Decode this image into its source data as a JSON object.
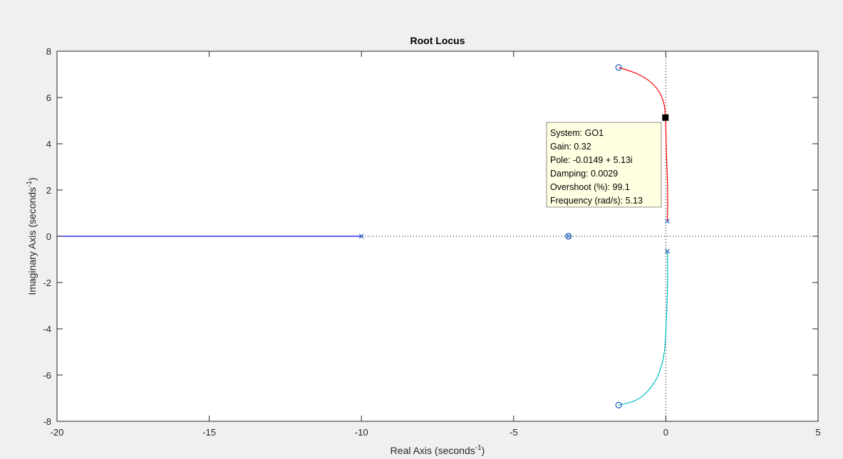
{
  "chart_data": {
    "type": "scatter",
    "title": "Root Locus",
    "xlabel": "Real Axis (seconds",
    "xlabel_sup": "-1",
    "xlabel_end": ")",
    "ylabel": "Imaginary Axis (seconds",
    "ylabel_sup": "-1",
    "ylabel_end": ")",
    "xlim": [
      -20,
      5
    ],
    "ylim": [
      -8,
      8
    ],
    "xticks": [
      -20,
      -15,
      -10,
      -5,
      0,
      5
    ],
    "yticks": [
      -8,
      -6,
      -4,
      -2,
      0,
      2,
      4,
      6,
      8
    ],
    "grid": false,
    "colors": {
      "branch_real": "#0000ff",
      "branch_upper": "#ff0000",
      "branch_lower": "#00bfbf",
      "markers": "#1f5fbf",
      "reference_lines": "#000000",
      "datatip_bg": "#ffffe1"
    },
    "series": [
      {
        "values": [
          [
            -20,
            0
          ],
          [
            -10,
            0
          ]
        ]
      },
      {
        "values": [
          [
            0.05,
            0.65
          ],
          [
            0.06,
            1.5
          ],
          [
            0.05,
            2.5
          ],
          [
            0.02,
            3.5
          ],
          [
            -0.0149,
            5.13
          ],
          [
            -0.1,
            5.9
          ],
          [
            -0.4,
            6.55
          ],
          [
            -0.9,
            7.0
          ],
          [
            -1.55,
            7.3
          ]
        ]
      },
      {
        "values": [
          [
            0.05,
            -0.65
          ],
          [
            0.06,
            -1.5
          ],
          [
            0.05,
            -2.5
          ],
          [
            0.02,
            -3.5
          ],
          [
            -0.05,
            -5.0
          ],
          [
            -0.25,
            -6.0
          ],
          [
            -0.6,
            -6.7
          ],
          [
            -1.0,
            -7.1
          ],
          [
            -1.55,
            -7.3
          ]
        ]
      }
    ],
    "poles": [
      [
        -10,
        0
      ],
      [
        0.05,
        0.65
      ],
      [
        0.05,
        -0.65
      ],
      [
        -3.2,
        0
      ]
    ],
    "zeros": [
      [
        -1.55,
        7.3
      ],
      [
        -1.55,
        -7.3
      ],
      [
        -3.2,
        0
      ]
    ],
    "selected_point": [
      -0.0149,
      5.13
    ],
    "datatip": {
      "lines": [
        "System: GO1",
        "Gain: 0.32",
        "Pole: -0.0149 + 5.13i",
        "Damping: 0.0029",
        "Overshoot (%): 99.1",
        "Frequency (rad/s): 5.13"
      ]
    }
  }
}
